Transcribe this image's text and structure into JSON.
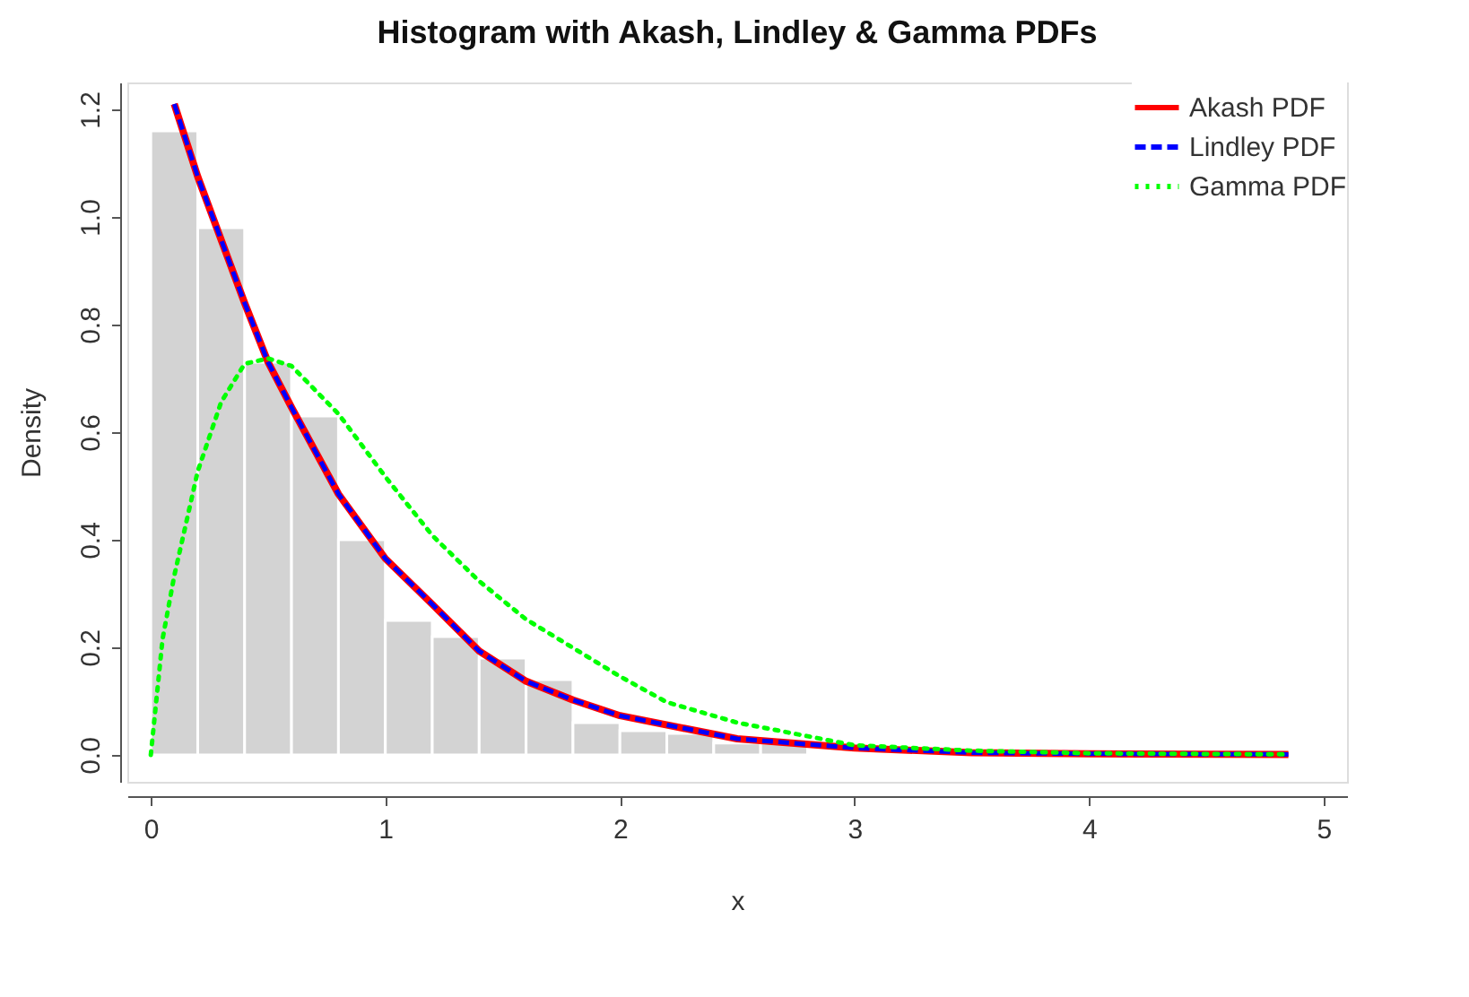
{
  "chart_data": {
    "type": "histogram",
    "title": "Histogram with Akash, Lindley & Gamma PDFs",
    "xlabel": "x",
    "ylabel": "Density",
    "bins": [
      0,
      0.2,
      0.4,
      0.6,
      0.8,
      1.0,
      1.2,
      1.4,
      1.6,
      1.8,
      2.0,
      2.2,
      2.4,
      2.6,
      2.8
    ],
    "values": [
      1.16,
      0.98,
      0.73,
      0.63,
      0.4,
      0.25,
      0.22,
      0.18,
      0.14,
      0.06,
      0.045,
      0.04,
      0.022,
      0.022
    ],
    "color": "#d3d3d3",
    "series": [
      {
        "name": "Akash PDF",
        "type": "line",
        "line_style": "solid",
        "color": "#ff0000",
        "x": [
          0.1,
          0.2,
          0.4,
          0.5,
          0.6,
          0.8,
          1.0,
          1.2,
          1.4,
          1.6,
          1.8,
          2.0,
          2.5,
          3.0,
          3.5,
          4.0,
          4.85
        ],
        "values": [
          1.21,
          1.075,
          0.84,
          0.73,
          0.646,
          0.485,
          0.365,
          0.28,
          0.193,
          0.137,
          0.102,
          0.073,
          0.03,
          0.013,
          0.004,
          0.002,
          0.001
        ]
      },
      {
        "name": "Lindley PDF",
        "type": "line",
        "line_style": "dashed",
        "color": "#0000ff",
        "x": [
          0.1,
          0.2,
          0.4,
          0.5,
          0.6,
          0.8,
          1.0,
          1.2,
          1.4,
          1.6,
          1.8,
          2.0,
          2.5,
          3.0,
          3.5,
          4.0,
          4.85
        ],
        "values": [
          1.21,
          1.075,
          0.84,
          0.73,
          0.646,
          0.485,
          0.365,
          0.28,
          0.193,
          0.137,
          0.102,
          0.073,
          0.03,
          0.013,
          0.004,
          0.002,
          0.001
        ]
      },
      {
        "name": "Gamma PDF",
        "type": "line",
        "line_style": "dotted",
        "color": "#00ff00",
        "x": [
          0,
          0.05,
          0.1,
          0.2,
          0.3,
          0.4,
          0.5,
          0.6,
          0.8,
          1.0,
          1.2,
          1.4,
          1.6,
          1.8,
          2.0,
          2.2,
          2.5,
          3.0,
          3.5,
          4.0,
          4.85
        ],
        "values": [
          0,
          0.215,
          0.333,
          0.527,
          0.656,
          0.727,
          0.737,
          0.723,
          0.634,
          0.517,
          0.408,
          0.323,
          0.252,
          0.199,
          0.146,
          0.098,
          0.06,
          0.018,
          0.008,
          0.003,
          0.001
        ]
      }
    ],
    "xlim": [
      -0.1,
      5.1
    ],
    "ylim": [
      -0.05,
      1.25
    ],
    "xticks": [
      0,
      1,
      2,
      3,
      4,
      5
    ],
    "yticks": [
      {
        "value": 0,
        "label": "0.0"
      },
      0.2,
      0.4,
      0.6,
      0.8,
      {
        "value": 1,
        "label": "1.0"
      },
      1.2
    ],
    "grid": false,
    "legend": "top right"
  }
}
